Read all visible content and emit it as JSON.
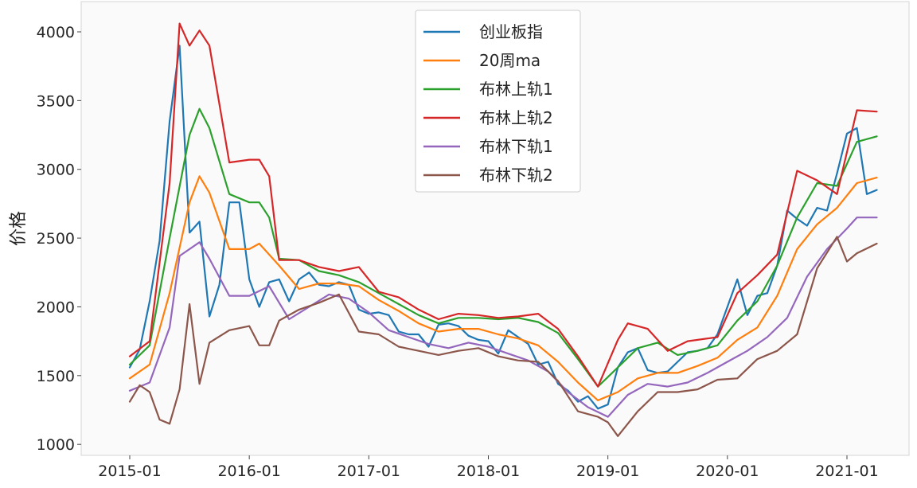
{
  "chart_data": {
    "type": "line",
    "ylabel": "价格",
    "ylim": [
      920,
      4220
    ],
    "x_ticks": [
      "2015-01",
      "2016-01",
      "2017-01",
      "2018-01",
      "2019-01",
      "2020-01",
      "2021-01"
    ],
    "y_ticks": [
      1000,
      1500,
      2000,
      2500,
      3000,
      3500,
      4000
    ],
    "grid": false,
    "legend_position": "upper center",
    "x_unit": "date (year-month)",
    "series": [
      {
        "name": "创业板指",
        "color": "#1f77b4",
        "points": [
          [
            "2015-01",
            1560
          ],
          [
            "2015-02",
            1690
          ],
          [
            "2015-03",
            2040
          ],
          [
            "2015-04",
            2480
          ],
          [
            "2015-05",
            3350
          ],
          [
            "2015-06",
            3900
          ],
          [
            "2015-07",
            2540
          ],
          [
            "2015-08",
            2620
          ],
          [
            "2015-09",
            1930
          ],
          [
            "2015-10",
            2160
          ],
          [
            "2015-11",
            2760
          ],
          [
            "2015-12",
            2760
          ],
          [
            "2016-01",
            2200
          ],
          [
            "2016-02",
            2000
          ],
          [
            "2016-03",
            2180
          ],
          [
            "2016-04",
            2200
          ],
          [
            "2016-05",
            2040
          ],
          [
            "2016-06",
            2200
          ],
          [
            "2016-07",
            2250
          ],
          [
            "2016-08",
            2160
          ],
          [
            "2016-09",
            2150
          ],
          [
            "2016-10",
            2180
          ],
          [
            "2016-11",
            2160
          ],
          [
            "2016-12",
            1980
          ],
          [
            "2017-01",
            1950
          ],
          [
            "2017-02",
            1960
          ],
          [
            "2017-03",
            1940
          ],
          [
            "2017-04",
            1820
          ],
          [
            "2017-05",
            1800
          ],
          [
            "2017-06",
            1800
          ],
          [
            "2017-07",
            1710
          ],
          [
            "2017-08",
            1870
          ],
          [
            "2017-09",
            1880
          ],
          [
            "2017-10",
            1860
          ],
          [
            "2017-11",
            1790
          ],
          [
            "2017-12",
            1760
          ],
          [
            "2018-01",
            1750
          ],
          [
            "2018-02",
            1660
          ],
          [
            "2018-03",
            1830
          ],
          [
            "2018-04",
            1780
          ],
          [
            "2018-05",
            1730
          ],
          [
            "2018-06",
            1580
          ],
          [
            "2018-07",
            1600
          ],
          [
            "2018-08",
            1440
          ],
          [
            "2018-09",
            1390
          ],
          [
            "2018-10",
            1310
          ],
          [
            "2018-11",
            1350
          ],
          [
            "2018-12",
            1260
          ],
          [
            "2019-01",
            1290
          ],
          [
            "2019-02",
            1560
          ],
          [
            "2019-03",
            1670
          ],
          [
            "2019-04",
            1700
          ],
          [
            "2019-05",
            1540
          ],
          [
            "2019-06",
            1520
          ],
          [
            "2019-07",
            1530
          ],
          [
            "2019-08",
            1600
          ],
          [
            "2019-09",
            1670
          ],
          [
            "2019-10",
            1680
          ],
          [
            "2019-11",
            1700
          ],
          [
            "2019-12",
            1800
          ],
          [
            "2020-01",
            2000
          ],
          [
            "2020-02",
            2200
          ],
          [
            "2020-03",
            1940
          ],
          [
            "2020-04",
            2080
          ],
          [
            "2020-05",
            2100
          ],
          [
            "2020-06",
            2300
          ],
          [
            "2020-07",
            2700
          ],
          [
            "2020-08",
            2640
          ],
          [
            "2020-09",
            2590
          ],
          [
            "2020-10",
            2720
          ],
          [
            "2020-11",
            2700
          ],
          [
            "2020-12",
            2970
          ],
          [
            "2021-01",
            3260
          ],
          [
            "2021-02",
            3300
          ],
          [
            "2021-03",
            2820
          ],
          [
            "2021-04",
            2850
          ]
        ]
      },
      {
        "name": "20周ma",
        "color": "#ff7f0e",
        "points": [
          [
            "2015-01",
            1480
          ],
          [
            "2015-03",
            1580
          ],
          [
            "2015-05",
            2100
          ],
          [
            "2015-07",
            2760
          ],
          [
            "2015-08",
            2950
          ],
          [
            "2015-09",
            2830
          ],
          [
            "2015-11",
            2420
          ],
          [
            "2016-01",
            2420
          ],
          [
            "2016-02",
            2460
          ],
          [
            "2016-04",
            2300
          ],
          [
            "2016-06",
            2130
          ],
          [
            "2016-08",
            2170
          ],
          [
            "2016-10",
            2170
          ],
          [
            "2016-12",
            2150
          ],
          [
            "2017-02",
            2050
          ],
          [
            "2017-04",
            1970
          ],
          [
            "2017-06",
            1880
          ],
          [
            "2017-08",
            1820
          ],
          [
            "2017-10",
            1840
          ],
          [
            "2017-12",
            1840
          ],
          [
            "2018-02",
            1800
          ],
          [
            "2018-04",
            1770
          ],
          [
            "2018-06",
            1720
          ],
          [
            "2018-08",
            1600
          ],
          [
            "2018-10",
            1450
          ],
          [
            "2018-12",
            1320
          ],
          [
            "2019-02",
            1380
          ],
          [
            "2019-04",
            1480
          ],
          [
            "2019-06",
            1520
          ],
          [
            "2019-08",
            1520
          ],
          [
            "2019-10",
            1570
          ],
          [
            "2019-12",
            1630
          ],
          [
            "2020-02",
            1760
          ],
          [
            "2020-04",
            1850
          ],
          [
            "2020-06",
            2080
          ],
          [
            "2020-08",
            2420
          ],
          [
            "2020-10",
            2600
          ],
          [
            "2020-12",
            2720
          ],
          [
            "2021-02",
            2900
          ],
          [
            "2021-04",
            2940
          ]
        ]
      },
      {
        "name": "布林上轨1",
        "color": "#2ca02c",
        "points": [
          [
            "2015-01",
            1580
          ],
          [
            "2015-03",
            1720
          ],
          [
            "2015-05",
            2500
          ],
          [
            "2015-07",
            3250
          ],
          [
            "2015-08",
            3440
          ],
          [
            "2015-09",
            3300
          ],
          [
            "2015-11",
            2820
          ],
          [
            "2016-01",
            2760
          ],
          [
            "2016-02",
            2760
          ],
          [
            "2016-03",
            2650
          ],
          [
            "2016-04",
            2350
          ],
          [
            "2016-06",
            2340
          ],
          [
            "2016-08",
            2260
          ],
          [
            "2016-10",
            2230
          ],
          [
            "2016-12",
            2180
          ],
          [
            "2017-02",
            2100
          ],
          [
            "2017-04",
            2020
          ],
          [
            "2017-06",
            1940
          ],
          [
            "2017-08",
            1880
          ],
          [
            "2017-10",
            1920
          ],
          [
            "2017-12",
            1920
          ],
          [
            "2018-02",
            1910
          ],
          [
            "2018-04",
            1920
          ],
          [
            "2018-06",
            1890
          ],
          [
            "2018-08",
            1810
          ],
          [
            "2018-10",
            1620
          ],
          [
            "2018-12",
            1420
          ],
          [
            "2019-02",
            1560
          ],
          [
            "2019-04",
            1700
          ],
          [
            "2019-06",
            1740
          ],
          [
            "2019-08",
            1650
          ],
          [
            "2019-10",
            1680
          ],
          [
            "2019-12",
            1720
          ],
          [
            "2020-02",
            1900
          ],
          [
            "2020-04",
            2040
          ],
          [
            "2020-06",
            2300
          ],
          [
            "2020-08",
            2650
          ],
          [
            "2020-10",
            2900
          ],
          [
            "2020-12",
            2880
          ],
          [
            "2021-02",
            3200
          ],
          [
            "2021-04",
            3240
          ]
        ]
      },
      {
        "name": "布林上轨2",
        "color": "#d62728",
        "points": [
          [
            "2015-01",
            1640
          ],
          [
            "2015-03",
            1750
          ],
          [
            "2015-05",
            2900
          ],
          [
            "2015-06",
            4060
          ],
          [
            "2015-07",
            3900
          ],
          [
            "2015-08",
            4010
          ],
          [
            "2015-09",
            3900
          ],
          [
            "2015-11",
            3050
          ],
          [
            "2016-01",
            3070
          ],
          [
            "2016-02",
            3070
          ],
          [
            "2016-03",
            2950
          ],
          [
            "2016-04",
            2340
          ],
          [
            "2016-06",
            2340
          ],
          [
            "2016-08",
            2290
          ],
          [
            "2016-10",
            2260
          ],
          [
            "2016-12",
            2290
          ],
          [
            "2017-02",
            2110
          ],
          [
            "2017-04",
            2070
          ],
          [
            "2017-06",
            1980
          ],
          [
            "2017-08",
            1910
          ],
          [
            "2017-10",
            1950
          ],
          [
            "2017-12",
            1940
          ],
          [
            "2018-02",
            1920
          ],
          [
            "2018-04",
            1930
          ],
          [
            "2018-06",
            1950
          ],
          [
            "2018-08",
            1840
          ],
          [
            "2018-10",
            1640
          ],
          [
            "2018-12",
            1420
          ],
          [
            "2019-02",
            1760
          ],
          [
            "2019-03",
            1880
          ],
          [
            "2019-05",
            1840
          ],
          [
            "2019-07",
            1680
          ],
          [
            "2019-09",
            1750
          ],
          [
            "2019-12",
            1780
          ],
          [
            "2020-02",
            2100
          ],
          [
            "2020-04",
            2230
          ],
          [
            "2020-06",
            2380
          ],
          [
            "2020-08",
            2990
          ],
          [
            "2020-10",
            2920
          ],
          [
            "2020-12",
            2820
          ],
          [
            "2021-02",
            3430
          ],
          [
            "2021-04",
            3420
          ]
        ]
      },
      {
        "name": "布林下轨1",
        "color": "#9467bd",
        "points": [
          [
            "2015-01",
            1390
          ],
          [
            "2015-03",
            1450
          ],
          [
            "2015-05",
            1850
          ],
          [
            "2015-06",
            2370
          ],
          [
            "2015-08",
            2470
          ],
          [
            "2015-09",
            2350
          ],
          [
            "2015-11",
            2080
          ],
          [
            "2016-01",
            2080
          ],
          [
            "2016-03",
            2150
          ],
          [
            "2016-05",
            1910
          ],
          [
            "2016-07",
            2000
          ],
          [
            "2016-09",
            2090
          ],
          [
            "2016-11",
            2060
          ],
          [
            "2017-01",
            1960
          ],
          [
            "2017-03",
            1830
          ],
          [
            "2017-05",
            1780
          ],
          [
            "2017-07",
            1730
          ],
          [
            "2017-09",
            1700
          ],
          [
            "2017-11",
            1740
          ],
          [
            "2018-01",
            1710
          ],
          [
            "2018-03",
            1660
          ],
          [
            "2018-05",
            1610
          ],
          [
            "2018-07",
            1530
          ],
          [
            "2018-09",
            1380
          ],
          [
            "2018-11",
            1270
          ],
          [
            "2019-01",
            1200
          ],
          [
            "2019-03",
            1360
          ],
          [
            "2019-05",
            1440
          ],
          [
            "2019-07",
            1420
          ],
          [
            "2019-09",
            1450
          ],
          [
            "2019-11",
            1520
          ],
          [
            "2020-01",
            1600
          ],
          [
            "2020-03",
            1680
          ],
          [
            "2020-05",
            1780
          ],
          [
            "2020-07",
            1920
          ],
          [
            "2020-09",
            2220
          ],
          [
            "2020-11",
            2420
          ],
          [
            "2021-01",
            2570
          ],
          [
            "2021-02",
            2650
          ],
          [
            "2021-04",
            2650
          ]
        ]
      },
      {
        "name": "布林下轨2",
        "color": "#8c564b",
        "points": [
          [
            "2015-01",
            1310
          ],
          [
            "2015-02",
            1430
          ],
          [
            "2015-03",
            1380
          ],
          [
            "2015-04",
            1180
          ],
          [
            "2015-05",
            1150
          ],
          [
            "2015-06",
            1400
          ],
          [
            "2015-07",
            2020
          ],
          [
            "2015-08",
            1440
          ],
          [
            "2015-09",
            1740
          ],
          [
            "2015-11",
            1830
          ],
          [
            "2016-01",
            1860
          ],
          [
            "2016-02",
            1720
          ],
          [
            "2016-03",
            1720
          ],
          [
            "2016-04",
            1900
          ],
          [
            "2016-06",
            1980
          ],
          [
            "2016-08",
            2030
          ],
          [
            "2016-10",
            2090
          ],
          [
            "2016-12",
            1820
          ],
          [
            "2017-02",
            1800
          ],
          [
            "2017-04",
            1710
          ],
          [
            "2017-06",
            1680
          ],
          [
            "2017-08",
            1650
          ],
          [
            "2017-10",
            1680
          ],
          [
            "2017-12",
            1700
          ],
          [
            "2018-02",
            1640
          ],
          [
            "2018-04",
            1610
          ],
          [
            "2018-06",
            1600
          ],
          [
            "2018-08",
            1460
          ],
          [
            "2018-10",
            1240
          ],
          [
            "2018-12",
            1200
          ],
          [
            "2019-01",
            1160
          ],
          [
            "2019-02",
            1060
          ],
          [
            "2019-04",
            1240
          ],
          [
            "2019-06",
            1380
          ],
          [
            "2019-08",
            1380
          ],
          [
            "2019-10",
            1400
          ],
          [
            "2019-12",
            1470
          ],
          [
            "2020-02",
            1480
          ],
          [
            "2020-04",
            1620
          ],
          [
            "2020-06",
            1680
          ],
          [
            "2020-08",
            1800
          ],
          [
            "2020-10",
            2280
          ],
          [
            "2020-12",
            2510
          ],
          [
            "2021-01",
            2330
          ],
          [
            "2021-02",
            2390
          ],
          [
            "2021-04",
            2460
          ]
        ]
      }
    ]
  }
}
